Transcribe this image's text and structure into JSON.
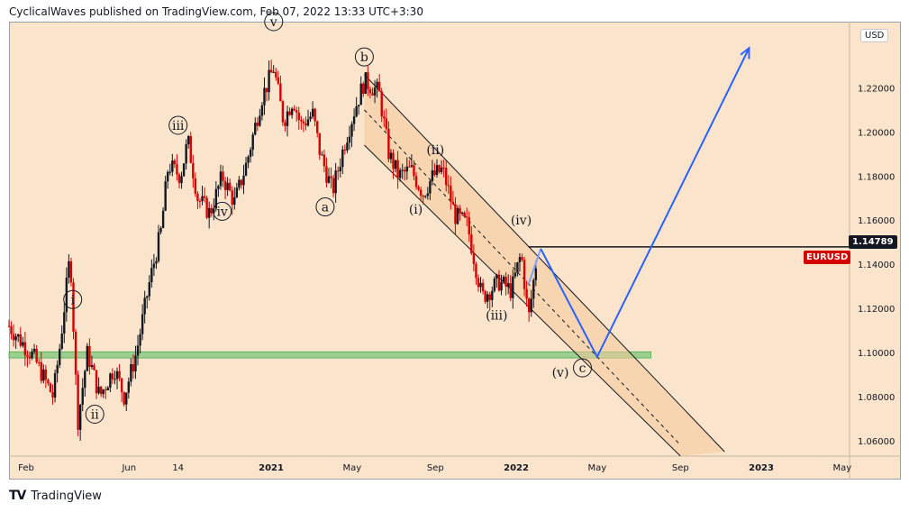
{
  "header": {
    "attribution": "CyclicalWaves published on TradingView.com, Feb 07, 2022 13:33 UTC+3:30"
  },
  "footer": {
    "logo_icon": "tradingview-logo-icon",
    "brand": "TradingView"
  },
  "chart_data": {
    "type": "candlestick",
    "symbol_label": "EURUSD",
    "currency_label": "USD",
    "current_price_label": "1.14789",
    "ylim": [
      1.053,
      1.25
    ],
    "y_ticks": [
      "1.06000",
      "1.08000",
      "1.10000",
      "1.12000",
      "1.14000",
      "1.16000",
      "1.18000",
      "1.20000",
      "1.22000"
    ],
    "y_tick_values": [
      1.06,
      1.08,
      1.1,
      1.12,
      1.14,
      1.16,
      1.18,
      1.2,
      1.22
    ],
    "x_ticks": [
      "Feb",
      "Jun",
      "14",
      "2021",
      "May",
      "Sep",
      "2022",
      "May",
      "Sep",
      "2023",
      "May"
    ],
    "x_tick_values": [
      2020.0,
      2020.42,
      2020.62,
      2021.0,
      2021.33,
      2021.67,
      2022.0,
      2022.33,
      2022.67,
      2023.0,
      2023.33
    ],
    "xlim": [
      2019.93,
      2023.36
    ],
    "price_path": [
      [
        2019.93,
        1.112
      ],
      [
        2020.03,
        1.098
      ],
      [
        2020.11,
        1.08
      ],
      [
        2020.14,
        1.105
      ],
      [
        2020.18,
        1.145
      ],
      [
        2020.21,
        1.068
      ],
      [
        2020.25,
        1.1
      ],
      [
        2020.3,
        1.08
      ],
      [
        2020.36,
        1.093
      ],
      [
        2020.4,
        1.08
      ],
      [
        2020.45,
        1.1
      ],
      [
        2020.5,
        1.13
      ],
      [
        2020.55,
        1.155
      ],
      [
        2020.58,
        1.185
      ],
      [
        2020.63,
        1.18
      ],
      [
        2020.66,
        1.196
      ],
      [
        2020.7,
        1.17
      ],
      [
        2020.75,
        1.163
      ],
      [
        2020.8,
        1.18
      ],
      [
        2020.85,
        1.168
      ],
      [
        2020.9,
        1.186
      ],
      [
        2020.96,
        1.215
      ],
      [
        2021.01,
        1.229
      ],
      [
        2021.05,
        1.205
      ],
      [
        2021.09,
        1.215
      ],
      [
        2021.12,
        1.203
      ],
      [
        2021.17,
        1.208
      ],
      [
        2021.2,
        1.19
      ],
      [
        2021.25,
        1.173
      ],
      [
        2021.3,
        1.195
      ],
      [
        2021.34,
        1.21
      ],
      [
        2021.38,
        1.223
      ],
      [
        2021.44,
        1.218
      ],
      [
        2021.48,
        1.19
      ],
      [
        2021.52,
        1.18
      ],
      [
        2021.57,
        1.183
      ],
      [
        2021.62,
        1.172
      ],
      [
        2021.66,
        1.18
      ],
      [
        2021.7,
        1.183
      ],
      [
        2021.75,
        1.162
      ],
      [
        2021.8,
        1.158
      ],
      [
        2021.86,
        1.125
      ],
      [
        2021.93,
        1.132
      ],
      [
        2021.98,
        1.128
      ],
      [
        2022.02,
        1.145
      ],
      [
        2022.05,
        1.115
      ],
      [
        2022.08,
        1.14
      ]
    ],
    "channel": {
      "upper": [
        [
          2021.38,
          1.226
        ],
        [
          2022.85,
          1.055
        ]
      ],
      "lower": [
        [
          2021.38,
          1.194
        ],
        [
          2022.67,
          1.053
        ]
      ],
      "mid": [
        [
          2021.38,
          1.21
        ],
        [
          2022.67,
          1.058
        ]
      ]
    },
    "resistance_line": {
      "value": 1.14789,
      "from": 2022.05,
      "to": 2023.36
    },
    "support_zone": [
      1.0975,
      1.1003
    ],
    "projection": [
      [
        2022.03,
        1.135
      ],
      [
        2022.1,
        1.147
      ],
      [
        2022.33,
        1.098
      ],
      [
        2022.95,
        1.238
      ]
    ],
    "projection_prefix": [
      [
        2022.05,
        1.131
      ],
      [
        2022.1,
        1.147
      ]
    ],
    "wave_labels": [
      {
        "text": "i",
        "x": 2020.19,
        "y": 1.124,
        "circled": true
      },
      {
        "text": "ii",
        "x": 2020.28,
        "y": 1.072,
        "circled": true
      },
      {
        "text": "iii",
        "x": 2020.62,
        "y": 1.203,
        "circled": true
      },
      {
        "text": "iv",
        "x": 2020.8,
        "y": 1.164,
        "circled": true
      },
      {
        "text": "v",
        "x": 2021.01,
        "y": 1.25,
        "circled": true
      },
      {
        "text": "a",
        "x": 2021.22,
        "y": 1.166,
        "circled": true
      },
      {
        "text": "b",
        "x": 2021.38,
        "y": 1.234,
        "circled": true
      },
      {
        "text": "(i)",
        "x": 2021.59,
        "y": 1.165,
        "circled": false
      },
      {
        "text": "(ii)",
        "x": 2021.67,
        "y": 1.192,
        "circled": false
      },
      {
        "text": "(iii)",
        "x": 2021.92,
        "y": 1.117,
        "circled": false
      },
      {
        "text": "(iv)",
        "x": 2022.02,
        "y": 1.16,
        "circled": false
      },
      {
        "text": "(v)",
        "x": 2022.18,
        "y": 1.091,
        "circled": false
      },
      {
        "text": "c",
        "x": 2022.27,
        "y": 1.093,
        "circled": true
      }
    ]
  },
  "colors": {
    "background": "#fae5cc",
    "candle_up": "#131722",
    "candle_down": "#d50000",
    "projection": "#2962ff",
    "channel_fill": "#f6c99a",
    "support": "#7bc67b",
    "line": "#131722"
  }
}
